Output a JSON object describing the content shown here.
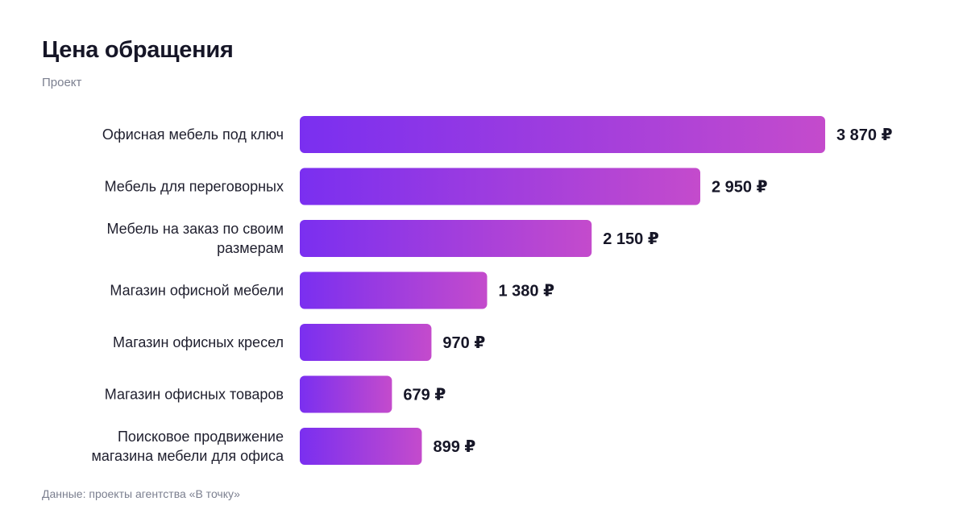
{
  "header": {
    "title": "Цена обращения",
    "subtitle": "Проект"
  },
  "footer": {
    "source": "Данные: проекты агентства «В точку»"
  },
  "colors": {
    "bar_start": "#7a2ff0",
    "bar_end": "#c44bcc",
    "text": "#161627",
    "muted": "#7b7f8f"
  },
  "chart_data": {
    "type": "bar",
    "orientation": "horizontal",
    "title": "Цена обращения",
    "subtitle": "Проект",
    "currency": "₽",
    "categories": [
      [
        "Офисная мебель под ключ"
      ],
      [
        "Мебель для переговорных"
      ],
      [
        "Мебель на заказ по своим",
        "размерам"
      ],
      [
        "Магазин офисной мебели"
      ],
      [
        "Магазин офисных кресел"
      ],
      [
        "Магазин офисных товаров"
      ],
      [
        "Поисковое продвижение",
        "магазина мебели для офиса"
      ]
    ],
    "values": [
      3870,
      2950,
      2150,
      1380,
      970,
      679,
      899
    ],
    "value_labels": [
      "3 870 ₽",
      "2 950 ₽",
      "2 150 ₽",
      "1 380 ₽",
      "970 ₽",
      "679 ₽",
      "899 ₽"
    ],
    "grid": false,
    "legend": "none"
  }
}
